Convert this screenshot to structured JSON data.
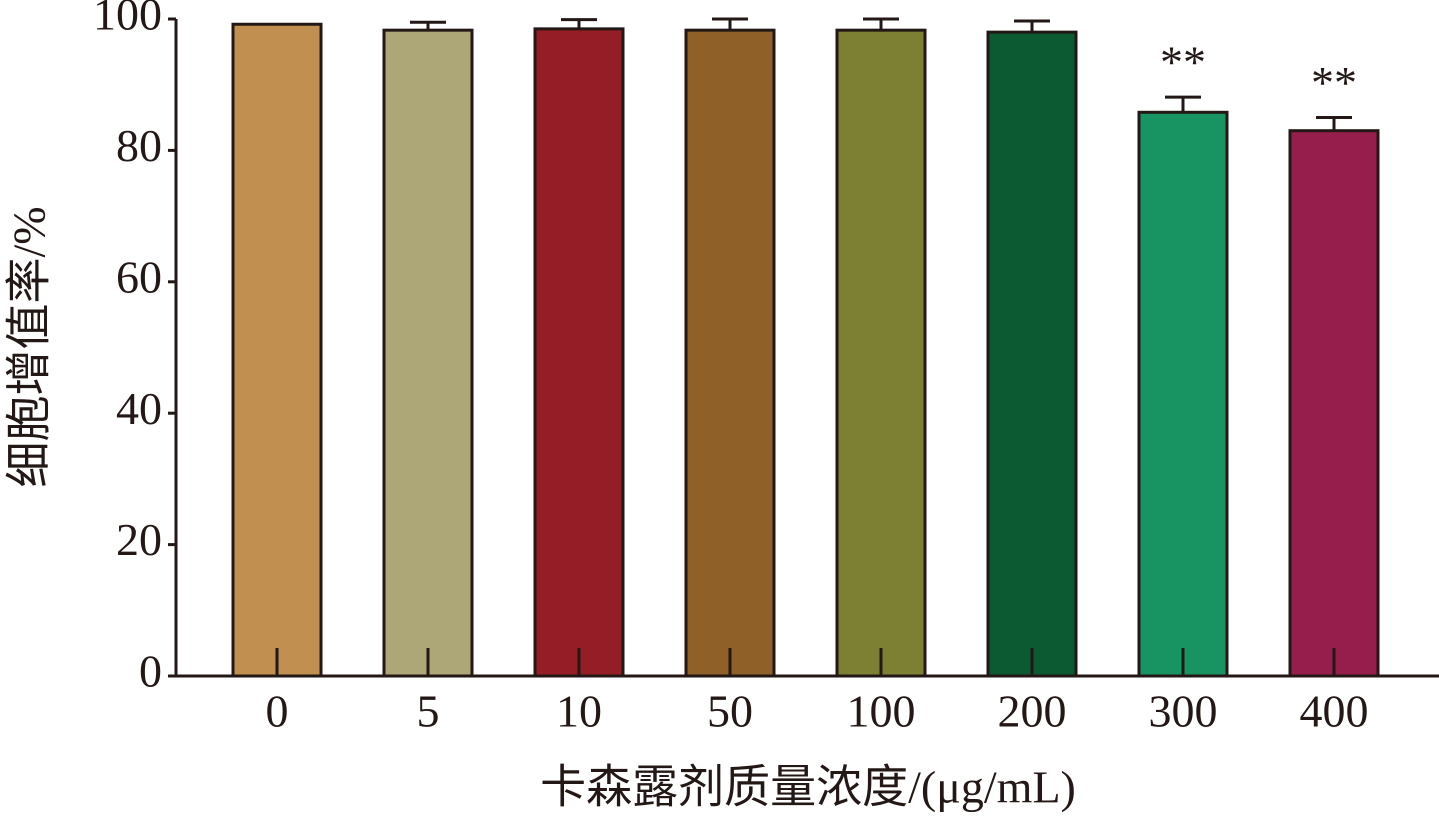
{
  "chart_data": {
    "type": "bar",
    "x_label": "卡森露剂质量浓度/(μg/mL)",
    "y_label": "细胞增值率/%",
    "categories": [
      "0",
      "5",
      "10",
      "50",
      "100",
      "200",
      "300",
      "400"
    ],
    "values": [
      99.2,
      98.3,
      98.5,
      98.3,
      98.3,
      98.0,
      85.8,
      83.0
    ],
    "errors": [
      0,
      1.2,
      1.4,
      1.7,
      1.7,
      1.7,
      2.3,
      2.0
    ],
    "annotations": [
      null,
      null,
      null,
      null,
      null,
      null,
      "**",
      "**"
    ],
    "colors": [
      "#C19050",
      "#ADA676",
      "#951D25",
      "#8F6128",
      "#7D8033",
      "#0B5A32",
      "#189463",
      "#961E4D"
    ],
    "ylim": [
      0,
      100
    ],
    "yticks": [
      0,
      20,
      40,
      60,
      80,
      100
    ],
    "grid": false
  }
}
